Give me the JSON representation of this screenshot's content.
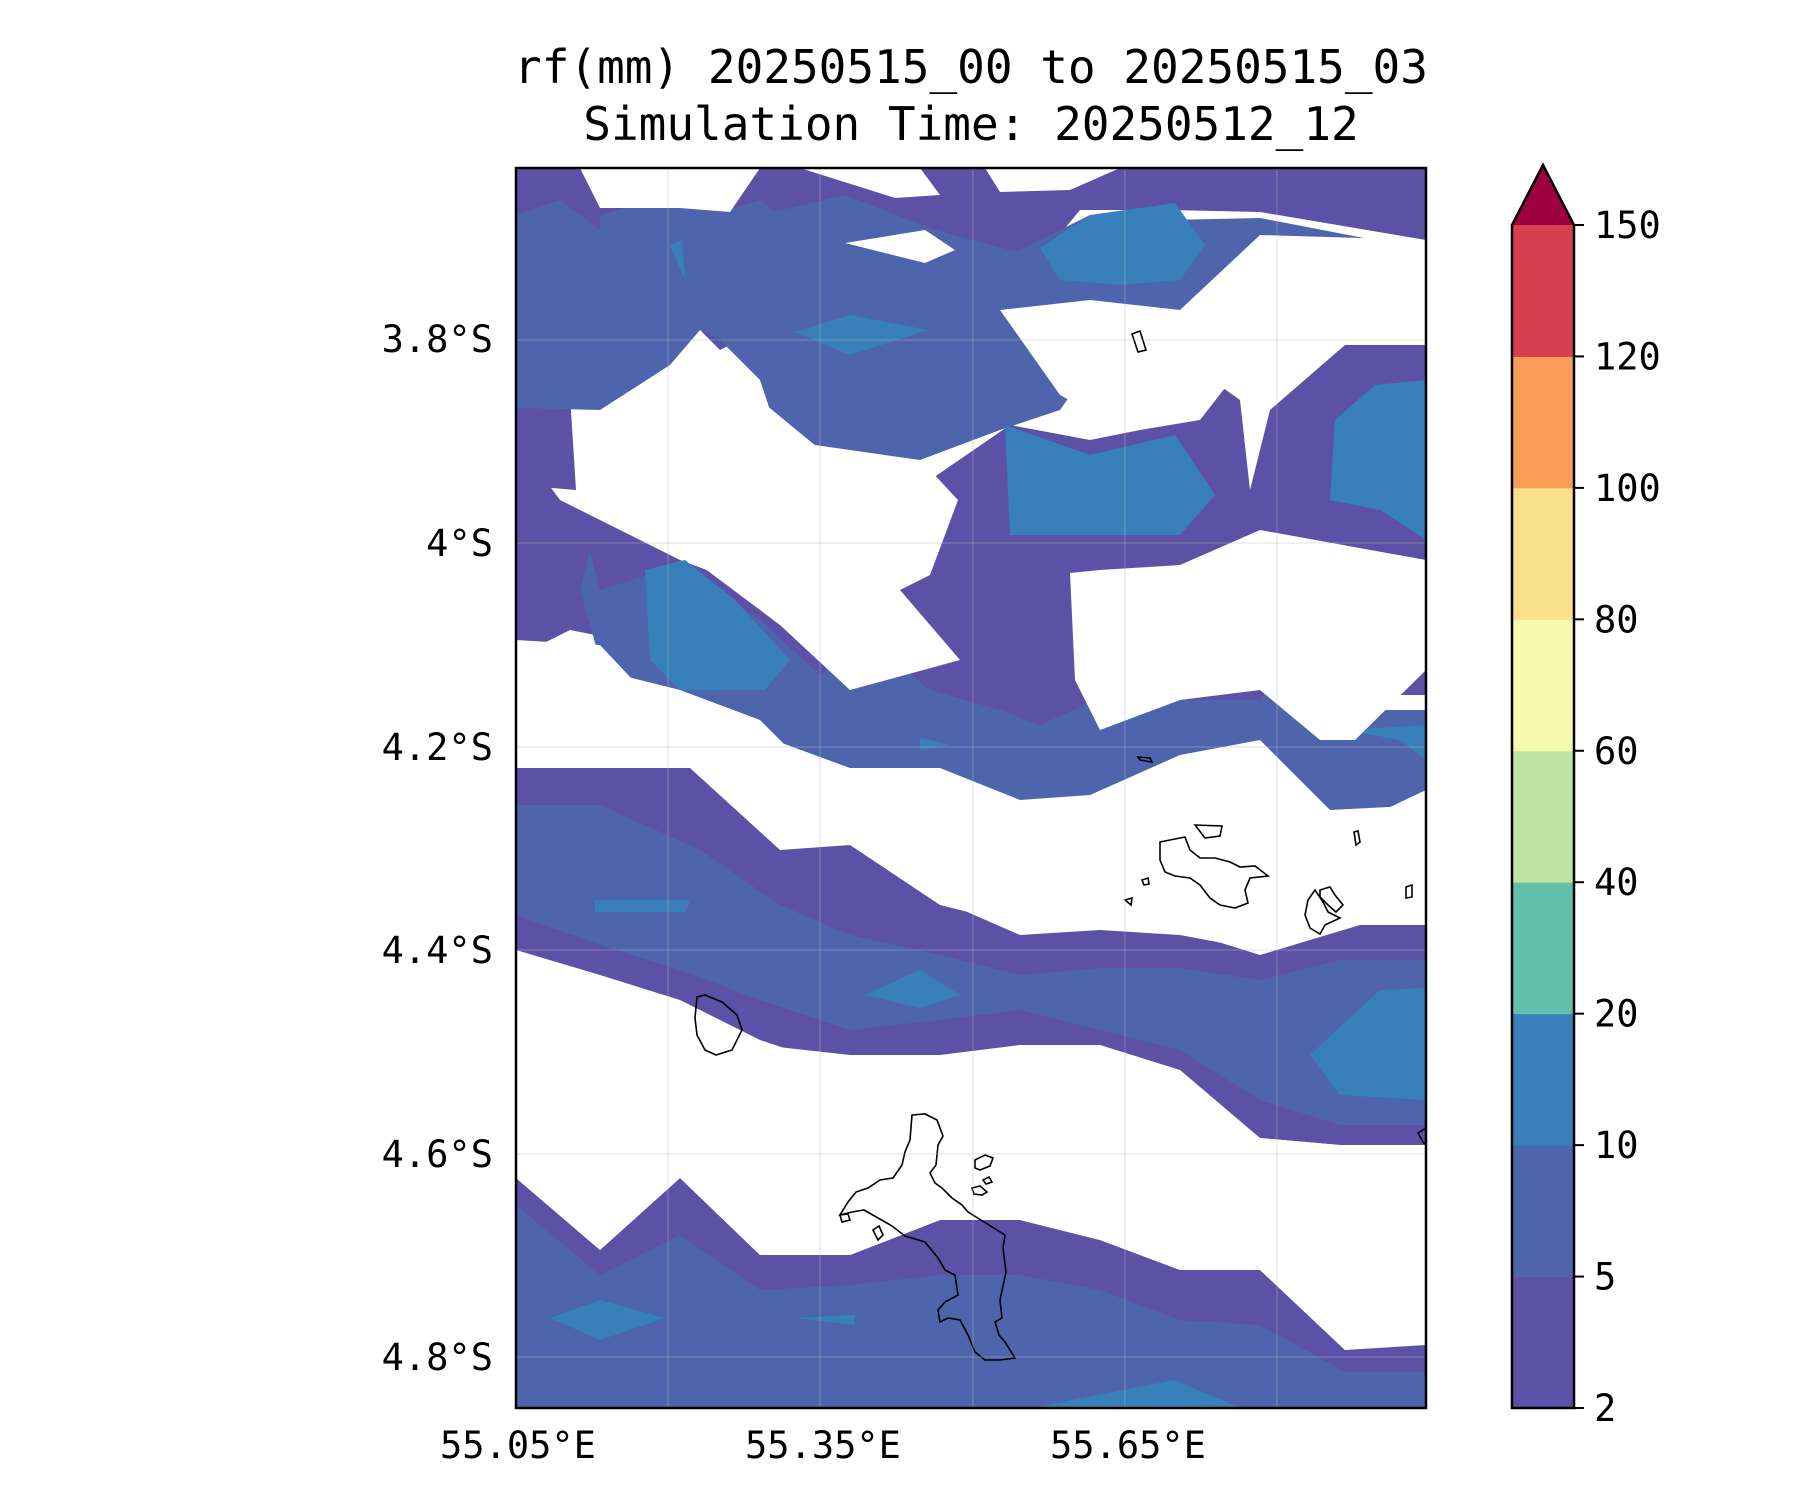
{
  "chart_data": {
    "type": "heatmap",
    "subtype": "filled-contour map",
    "title": "rf(mm) 20250515_00 to 20250515_03",
    "subtitle": "Simulation Time: 20250512_12",
    "x_ticks": [
      {
        "value": 55.05,
        "label": "55.05°E"
      },
      {
        "value": 55.35,
        "label": "55.35°E"
      },
      {
        "value": 55.65,
        "label": "55.65°E"
      }
    ],
    "y_ticks": [
      {
        "value": -3.8,
        "label": "3.8°S"
      },
      {
        "value": -4.0,
        "label": "4°S"
      },
      {
        "value": -4.2,
        "label": "4.2°S"
      },
      {
        "value": -4.4,
        "label": "4.4°S"
      },
      {
        "value": -4.6,
        "label": "4.6°S"
      },
      {
        "value": -4.8,
        "label": "4.8°S"
      }
    ],
    "xlim": [
      55.05,
      55.95
    ],
    "ylim": [
      -4.83,
      -3.63
    ],
    "grid": true,
    "colorbar": {
      "extend": "max",
      "levels": [
        2,
        5,
        10,
        20,
        40,
        60,
        80,
        100,
        120,
        150
      ],
      "labels": [
        "2",
        "5",
        "10",
        "20",
        "40",
        "60",
        "80",
        "100",
        "120",
        "150"
      ],
      "colors": [
        "#5c51a6",
        "#4e64ad",
        "#3880bb",
        "#64bfaa",
        "#bde4a0",
        "#f5fbae",
        "#fbe08c",
        "#f99d59",
        "#d63f4e",
        "#9e0142"
      ]
    }
  }
}
